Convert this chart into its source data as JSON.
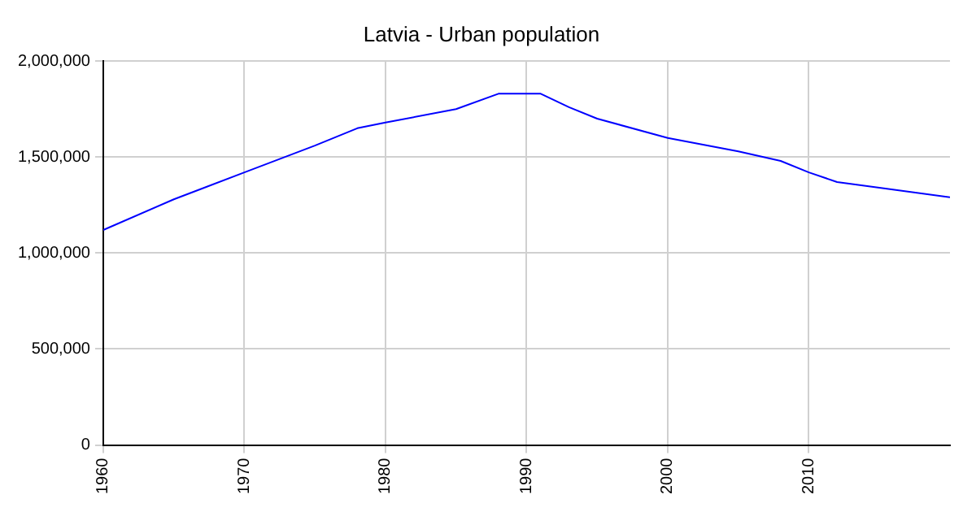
{
  "chart_data": {
    "type": "line",
    "title": "Latvia - Urban population",
    "x": [
      1960,
      1965,
      1970,
      1975,
      1978,
      1980,
      1985,
      1988,
      1991,
      1993,
      1995,
      2000,
      2005,
      2008,
      2010,
      2012,
      2015,
      2020
    ],
    "series": [
      {
        "color": "#0000ff",
        "values": [
          1120000,
          1280000,
          1420000,
          1560000,
          1650000,
          1680000,
          1750000,
          1830000,
          1830000,
          1760000,
          1700000,
          1600000,
          1530000,
          1480000,
          1420000,
          1370000,
          1340000,
          1290000
        ]
      }
    ],
    "xlim": [
      1960,
      2020
    ],
    "xticks": [
      1960,
      1970,
      1980,
      1990,
      2000,
      2010
    ],
    "ylim": [
      0,
      2000000
    ],
    "yticks": [
      {
        "value": 0,
        "label": "0"
      },
      {
        "value": 500000,
        "label": "500,000"
      },
      {
        "value": 1000000,
        "label": "1,000,000"
      },
      {
        "value": 1500000,
        "label": "1,500,000"
      },
      {
        "value": 2000000,
        "label": "2,000,000"
      }
    ],
    "grid": true,
    "legend": false,
    "marker": "none",
    "line_style": "solid"
  }
}
